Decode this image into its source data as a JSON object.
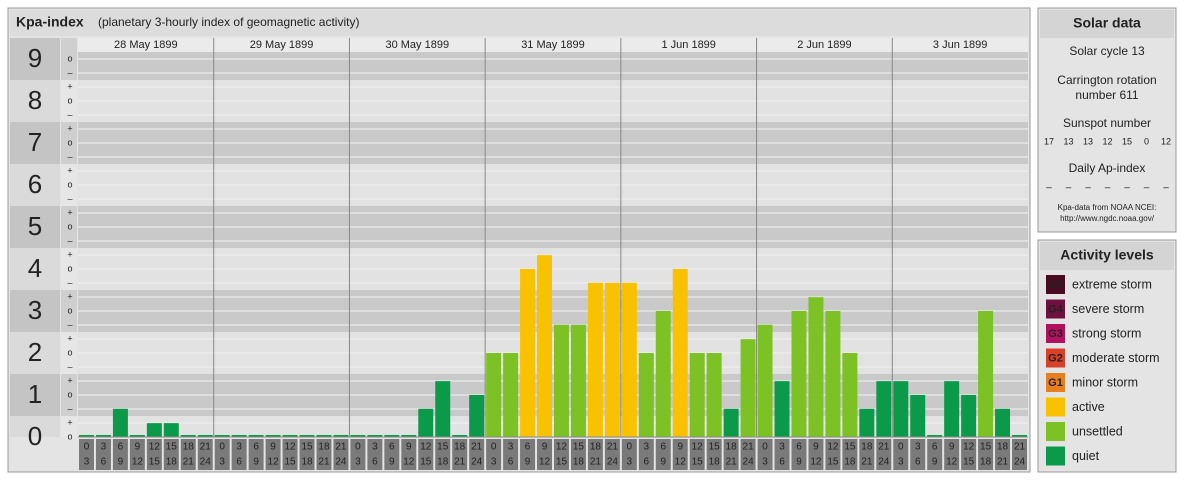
{
  "header": {
    "title": "Kpa-index",
    "subtitle": "(planetary 3-hourly index of geomagnetic activity)"
  },
  "chart_data": {
    "type": "bar",
    "ylim": [
      0,
      9.5
    ],
    "yticks": [
      0,
      1,
      2,
      3,
      4,
      5,
      6,
      7,
      8,
      9
    ],
    "ysteps": [
      "o",
      "+",
      "–"
    ],
    "hour_labels": [
      [
        "0",
        "3"
      ],
      [
        "3",
        "6"
      ],
      [
        "6",
        "9"
      ],
      [
        "9",
        "12"
      ],
      [
        "12",
        "15"
      ],
      [
        "15",
        "18"
      ],
      [
        "18",
        "21"
      ],
      [
        "21",
        "24"
      ]
    ],
    "days": [
      {
        "date": "28 May 1899",
        "values": [
          0,
          0,
          0.67,
          0,
          0.33,
          0.33,
          0,
          0
        ],
        "colors": [
          "#0a9a4a",
          "#0a9a4a",
          "#0a9a4a",
          "#0a9a4a",
          "#0a9a4a",
          "#0a9a4a",
          "#0a9a4a",
          "#0a9a4a"
        ]
      },
      {
        "date": "29 May 1899",
        "values": [
          0,
          0,
          0,
          0,
          0,
          0,
          0,
          0
        ],
        "colors": [
          "#0a9a4a",
          "#0a9a4a",
          "#0a9a4a",
          "#0a9a4a",
          "#0a9a4a",
          "#0a9a4a",
          "#0a9a4a",
          "#0a9a4a"
        ]
      },
      {
        "date": "30 May 1899",
        "values": [
          0,
          0,
          0,
          0,
          0.67,
          1.33,
          0,
          1
        ],
        "colors": [
          "#0a9a4a",
          "#0a9a4a",
          "#0a9a4a",
          "#0a9a4a",
          "#0a9a4a",
          "#0a9a4a",
          "#0a9a4a",
          "#0a9a4a"
        ]
      },
      {
        "date": "31 May 1899",
        "values": [
          2,
          2,
          4,
          4.33,
          2.67,
          2.67,
          3.67,
          3.67
        ],
        "colors": [
          "#7dc224",
          "#7dc224",
          "#f8c200",
          "#f8c200",
          "#7dc224",
          "#7dc224",
          "#f8c200",
          "#f8c200"
        ]
      },
      {
        "date": "1 Jun 1899",
        "values": [
          3.67,
          2,
          3,
          4,
          2,
          2,
          0.67,
          2.33
        ],
        "colors": [
          "#f8c200",
          "#7dc224",
          "#7dc224",
          "#f8c200",
          "#7dc224",
          "#7dc224",
          "#0a9a4a",
          "#7dc224"
        ]
      },
      {
        "date": "2 Jun 1899",
        "values": [
          2.67,
          1.33,
          3,
          3.33,
          3,
          2,
          0.67,
          1.33
        ],
        "colors": [
          "#7dc224",
          "#0a9a4a",
          "#7dc224",
          "#7dc224",
          "#7dc224",
          "#7dc224",
          "#0a9a4a",
          "#0a9a4a"
        ]
      },
      {
        "date": "3 Jun 1899",
        "values": [
          1.33,
          1,
          0,
          1.33,
          1,
          3,
          0.67,
          0
        ],
        "colors": [
          "#0a9a4a",
          "#0a9a4a",
          "#0a9a4a",
          "#0a9a4a",
          "#0a9a4a",
          "#7dc224",
          "#0a9a4a",
          "#0a9a4a"
        ]
      }
    ]
  },
  "solar": {
    "title": "Solar data",
    "cycle": "Solar cycle 13",
    "carrington": [
      "Carrington rotation",
      "number 611"
    ],
    "sunspot_label": "Sunspot number",
    "sunspots": [
      17,
      13,
      13,
      12,
      15,
      0,
      12
    ],
    "ap_label": "Daily Ap-index",
    "ap": [
      "–",
      "–",
      "–",
      "–",
      "–",
      "–",
      "–"
    ],
    "source": [
      "Kpa-data from NOAA NCEI:",
      "http://www.ngdc.noaa.gov/"
    ]
  },
  "activity": {
    "title": "Activity levels",
    "levels": [
      {
        "badge": "G5",
        "label": "extreme storm",
        "color": "#4a0a22"
      },
      {
        "badge": "G4",
        "label": "severe storm",
        "color": "#6e1040"
      },
      {
        "badge": "G3",
        "label": "strong storm",
        "color": "#b0125e"
      },
      {
        "badge": "G2",
        "label": "moderate storm",
        "color": "#d8402a"
      },
      {
        "badge": "G1",
        "label": "minor storm",
        "color": "#e6801e"
      },
      {
        "label": "active",
        "color": "#f8c200"
      },
      {
        "label": "unsettled",
        "color": "#7dc224"
      },
      {
        "label": "quiet",
        "color": "#0a9a4a"
      }
    ]
  }
}
